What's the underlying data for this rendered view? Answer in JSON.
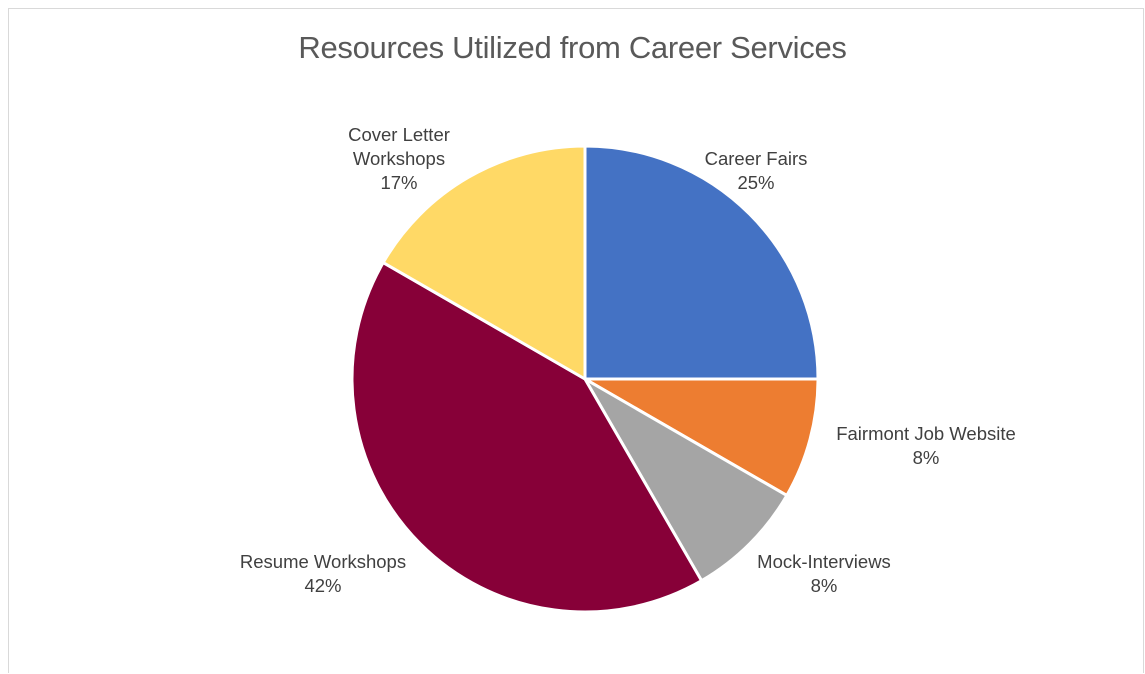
{
  "chart_data": {
    "type": "pie",
    "title": "Resources Utilized from Career Services",
    "slices": [
      {
        "label_lines": [
          "Career Fairs"
        ],
        "pct_label": "25%",
        "value": 25,
        "color": "#4472c4"
      },
      {
        "label_lines": [
          "Fairmont Job Website"
        ],
        "pct_label": "8%",
        "value": 8.33,
        "color": "#ed7d31"
      },
      {
        "label_lines": [
          "Mock-Interviews"
        ],
        "pct_label": "8%",
        "value": 8.33,
        "color": "#a5a5a5"
      },
      {
        "label_lines": [
          "Resume Workshops"
        ],
        "pct_label": "42%",
        "value": 41.67,
        "color": "#870038"
      },
      {
        "label_lines": [
          "Cover Letter",
          "Workshops"
        ],
        "pct_label": "17%",
        "value": 16.67,
        "color": "#ffd966"
      }
    ],
    "legend": "none",
    "start_angle_deg": 0,
    "direction": "clockwise"
  }
}
